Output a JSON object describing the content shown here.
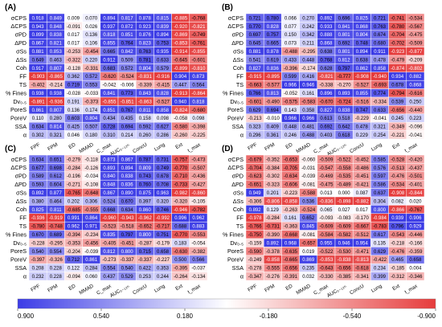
{
  "figure": {
    "colorbar": {
      "min": 0.9,
      "max": -0.9,
      "tick_labels": [
        "0.900",
        "0.540",
        "0.180",
        "-0.180",
        "-0.540",
        "-0.900"
      ],
      "colors": {
        "positive": "#3c3ce6",
        "neutral": "#ffffff",
        "negative": "#e63c3c"
      }
    }
  },
  "chart_data": [
    {
      "type": "heatmap",
      "panel_label": "(A)",
      "rows": [
        "σCPS",
        "ΔCPS",
        "σPD",
        "ΔPD",
        "σSs",
        "ΔSs",
        "Coh",
        "FF",
        "TS",
        "% Fines",
        "Dv₀.₅",
        "PoreS",
        "PoreV",
        "SSA",
        "α"
      ],
      "cols": [
        "FPF",
        "FPM",
        "ED",
        "MMAD",
        "C_max",
        "AUC₀₋₁₂ₕ",
        "ConcU",
        "Lung",
        "Ext",
        "t_max"
      ],
      "values": [
        [
          0.918,
          0.849,
          0.009,
          0.07,
          0.894,
          0.817,
          0.878,
          0.815,
          -0.885,
          -0.768
        ],
        [
          0.943,
          0.848,
          -0.091,
          0.026,
          0.937,
          0.872,
          0.923,
          0.839,
          -0.92,
          -0.821
        ],
        [
          0.899,
          0.838,
          0.017,
          0.136,
          0.818,
          0.851,
          0.876,
          0.894,
          -0.869,
          -0.749
        ],
        [
          0.867,
          0.821,
          0.017,
          0.106,
          0.855,
          0.764,
          0.823,
          0.753,
          -0.853,
          -0.761
        ],
        [
          0.881,
          0.853,
          -0.253,
          -0.454,
          0.665,
          0.842,
          0.763,
          0.935,
          -0.914,
          -0.855
        ],
        [
          0.649,
          0.463,
          -0.322,
          0.22,
          0.912,
          0.509,
          0.781,
          0.633,
          -0.645,
          -0.601
        ],
        [
          0.917,
          0.807,
          -0.128,
          -0.331,
          0.683,
          0.572,
          0.804,
          0.579,
          -0.899,
          -0.81
        ],
        [
          -0.903,
          -0.865,
          0.362,
          0.572,
          -0.62,
          -0.524,
          -0.831,
          -0.916,
          0.904,
          0.873
        ],
        [
          -0.402,
          -0.214,
          0.719,
          0.553,
          -0.042,
          -0.006,
          -0.339,
          -0.415,
          0.447,
          0.564
        ],
        [
          0.938,
          0.938,
          -0.028,
          -0.033,
          0.841,
          0.773,
          0.843,
          0.828,
          -0.913,
          -0.864
        ],
        [
          -0.891,
          -0.936,
          0.191,
          -0.373,
          -0.855,
          -0.851,
          -0.863,
          -0.527,
          0.94,
          0.818
        ],
        [
          0.861,
          0.807,
          0.136,
          0.174,
          0.851,
          0.767,
          0.811,
          0.858,
          -0.824,
          -0.68
        ],
        [
          0.11,
          0.28,
          0.603,
          0.804,
          0.434,
          0.435,
          0.158,
          0.098,
          -0.058,
          0.098
        ],
        [
          0.634,
          0.814,
          0.425,
          0.507,
          0.728,
          0.694,
          0.592,
          0.627,
          -0.58,
          -0.398
        ],
        [
          0.302,
          0.321,
          0.046,
          0.18,
          0.31,
          0.214,
          0.26,
          0.286,
          -0.26,
          -0.225
        ]
      ]
    },
    {
      "type": "heatmap",
      "panel_label": "(B)",
      "rows": [
        "σCPS",
        "ΔCPS",
        "σPD",
        "ΔPD",
        "σSs",
        "ΔSs",
        "Coh",
        "FF",
        "TS",
        "% Fines",
        "Dv₀.₅",
        "PoreS",
        "PoreV",
        "SSA",
        "α"
      ],
      "cols": [
        "FPF",
        "FPM",
        "ED",
        "MMAD",
        "C_max",
        "AUC₀₋₁₂ₕ",
        "ConcU",
        "Lung",
        "Ext",
        "t_max"
      ],
      "values": [
        [
          0.721,
          0.78,
          0.066,
          0.27,
          0.892,
          0.696,
          0.825,
          0.721,
          -0.741,
          -0.534
        ],
        [
          0.77,
          0.828,
          0.077,
          0.242,
          0.933,
          0.841,
          0.868,
          0.763,
          -0.78,
          -0.567
        ],
        [
          0.697,
          0.757,
          0.15,
          0.342,
          0.888,
          0.801,
          0.804,
          0.674,
          -0.704,
          -0.475
        ],
        [
          0.645,
          0.665,
          0.073,
          0.211,
          0.868,
          0.692,
          0.748,
          0.68,
          -0.702,
          -0.509
        ],
        [
          0.881,
          0.878,
          -0.488,
          -0.295,
          0.638,
          0.801,
          0.894,
          0.911,
          -0.923,
          -0.877
        ],
        [
          0.541,
          0.619,
          0.433,
          0.448,
          0.768,
          0.812,
          0.638,
          0.478,
          -0.479,
          -0.209
        ],
        [
          0.827,
          0.836,
          -0.396,
          -0.174,
          0.628,
          0.797,
          0.862,
          0.858,
          -0.874,
          -0.802
        ],
        [
          -0.915,
          -0.895,
          0.599,
          0.416,
          -0.821,
          -0.777,
          -0.908,
          -0.94,
          0.934,
          0.882
        ],
        [
          -0.663,
          -0.577,
          0.966,
          0.946,
          -0.338,
          -0.27,
          -0.527,
          -0.693,
          0.678,
          0.868
        ],
        [
          0.766,
          0.813,
          -0.052,
          0.161,
          0.896,
          0.893,
          0.855,
          0.774,
          -0.794,
          -0.616
        ],
        [
          -0.601,
          -0.49,
          -0.575,
          -0.583,
          -0.67,
          -0.724,
          -0.516,
          -0.334,
          0.539,
          0.25
        ],
        [
          0.629,
          0.694,
          0.143,
          0.358,
          0.827,
          0.838,
          0.747,
          0.633,
          -0.656,
          -0.44
        ],
        [
          -0.213,
          -0.01,
          0.966,
          0.966,
          0.613,
          0.518,
          -0.229,
          -0.041,
          0.245,
          0.223
        ],
        [
          0.323,
          0.409,
          0.448,
          0.481,
          0.692,
          0.642,
          0.478,
          0.321,
          -0.349,
          -0.096
        ],
        [
          0.296,
          0.361,
          0.246,
          0.488,
          0.403,
          0.618,
          0.229,
          0.254,
          -0.221,
          -0.041
        ]
      ]
    },
    {
      "type": "heatmap",
      "panel_label": "(C)",
      "rows": [
        "σCPS",
        "ΔCPS",
        "σPD",
        "ΔPD",
        "σSs",
        "ΔSs",
        "Coh",
        "FF",
        "TS",
        "% Fines",
        "Dv₀.₅",
        "PoreS",
        "PoreV",
        "SSA",
        "α"
      ],
      "cols": [
        "FPF",
        "FPM",
        "ED",
        "MMAD",
        "C_max",
        "AUC₀₋₁₂ₕ",
        "ConcU",
        "Lung",
        "Ext",
        "t_max"
      ],
      "values": [
        [
          0.634,
          0.651,
          -0.279,
          -0.118,
          0.873,
          0.867,
          0.787,
          0.731,
          -0.757,
          -0.473
        ],
        [
          0.677,
          0.698,
          -0.284,
          -0.126,
          0.893,
          0.894,
          0.809,
          0.749,
          -0.77,
          -0.507
        ],
        [
          0.589,
          0.612,
          -0.196,
          -0.034,
          0.84,
          0.838,
          0.743,
          0.678,
          -0.71,
          -0.436
        ],
        [
          0.593,
          0.604,
          -0.271,
          -0.108,
          0.848,
          0.836,
          0.76,
          0.708,
          -0.733,
          -0.427
        ],
        [
          0.892,
          0.877,
          -0.765,
          -0.648,
          0.867,
          0.89,
          0.875,
          0.963,
          -0.982,
          -0.86
        ],
        [
          0.38,
          0.464,
          0.202,
          0.306,
          0.524,
          0.67,
          0.397,
          0.32,
          -0.32,
          -0.105
        ],
        [
          0.825,
          0.811,
          -0.685,
          -0.555,
          0.668,
          0.634,
          0.86,
          0.746,
          -0.946,
          -0.782
        ],
        [
          -0.936,
          -0.919,
          0.991,
          0.864,
          -0.96,
          -0.943,
          -0.962,
          -0.992,
          0.996,
          0.962
        ],
        [
          -0.78,
          -0.748,
          0.962,
          0.971,
          -0.523,
          -0.518,
          -0.652,
          -0.717,
          0.688,
          0.883
        ],
        [
          0.67,
          0.689,
          -0.394,
          -0.234,
          0.835,
          0.797,
          0.8,
          0.751,
          -0.77,
          -0.553
        ],
        [
          -0.228,
          -0.295,
          -0.353,
          -0.456,
          -0.405,
          -0.451,
          -0.287,
          -0.179,
          0.183,
          -0.054
        ],
        [
          0.54,
          0.554,
          -0.204,
          -0.039,
          0.812,
          0.8,
          0.715,
          0.658,
          -0.63,
          -0.382
        ],
        [
          -0.397,
          -0.326,
          0.712,
          0.861,
          -0.273,
          -0.337,
          -0.337,
          -0.227,
          0.5,
          0.566
        ],
        [
          0.208,
          0.228,
          0.122,
          0.284,
          0.554,
          0.54,
          0.422,
          0.353,
          -0.395,
          -0.037
        ],
        [
          0.232,
          0.228,
          -0.094,
          0.06,
          0.437,
          0.529,
          0.253,
          0.244,
          -0.264,
          -0.134
        ]
      ]
    },
    {
      "type": "heatmap",
      "panel_label": "(D)",
      "rows": [
        "σCPS",
        "ΔCPS",
        "σPD",
        "ΔPD",
        "σSs",
        "ΔSs",
        "Coh",
        "FF",
        "TS",
        "% Fines",
        "Dv₀.₅",
        "PoreS",
        "PoreV",
        "SSA",
        "α"
      ],
      "cols": [
        "FPF",
        "FPM",
        "ED",
        "MMAD",
        "C_max",
        "AUC₀₋₁₂ₕ",
        "ConcU",
        "Lung",
        "Ext",
        "t_max"
      ],
      "values": [
        [
          -0.679,
          -0.352,
          -0.653,
          -0.06,
          -0.509,
          -0.522,
          -0.452,
          0.585,
          -0.528,
          -0.42
        ],
        [
          -0.704,
          -0.384,
          -0.705,
          -0.031,
          -0.547,
          -0.558,
          -0.486,
          0.576,
          -0.513,
          -0.437
        ],
        [
          -0.623,
          -0.302,
          -0.634,
          -0.039,
          -0.469,
          -0.535,
          -0.451,
          0.597,
          -0.476,
          -0.501
        ],
        [
          -0.651,
          -0.323,
          -0.606,
          -0.081,
          -0.475,
          -0.489,
          -0.421,
          0.586,
          -0.534,
          -0.401
        ],
        [
          0.949,
          0.201,
          -0.223,
          -0.588,
          0.013,
          0.0,
          0.087,
          0.637,
          -0.908,
          -0.844
        ],
        [
          -0.306,
          -0.806,
          -0.858,
          0.536,
          -0.836,
          -0.898,
          -0.882,
          0.304,
          0.082,
          0.02
        ],
        [
          0.892,
          0.129,
          -0.263,
          -0.524,
          0.065,
          0.027,
          0.017,
          0.8,
          -0.866,
          -0.767
        ],
        [
          -0.978,
          -0.284,
          0.161,
          0.652,
          -0.093,
          -0.083,
          -0.17,
          -0.984,
          0.939,
          0.906
        ],
        [
          -0.766,
          -0.731,
          -0.363,
          0.845,
          -0.609,
          -0.609,
          -0.667,
          -0.783,
          0.796,
          0.929
        ],
        [
          -0.75,
          -0.39,
          -0.668,
          -0.081,
          -0.584,
          -0.582,
          -0.512,
          0.617,
          -0.543,
          -0.446
        ],
        [
          -0.159,
          0.892,
          0.968,
          -0.657,
          0.955,
          0.946,
          0.954,
          0.135,
          -0.218,
          -0.166
        ],
        [
          -0.59,
          -0.378,
          -0.635,
          0.019,
          -0.522,
          -0.53,
          -0.471,
          0.629,
          -0.476,
          -0.359
        ],
        [
          -0.249,
          -0.858,
          -0.665,
          0.869,
          -0.853,
          -0.838,
          -0.813,
          -0.422,
          0.465,
          0.658
        ],
        [
          -0.278,
          -0.555,
          -0.656,
          0.235,
          -0.643,
          -0.656,
          -0.618,
          0.234,
          -0.185,
          0.004
        ],
        [
          -0.347,
          -0.276,
          -0.391,
          0.032,
          -0.33,
          -0.385,
          -0.341,
          0.399,
          -0.312,
          -0.346
        ]
      ]
    }
  ]
}
